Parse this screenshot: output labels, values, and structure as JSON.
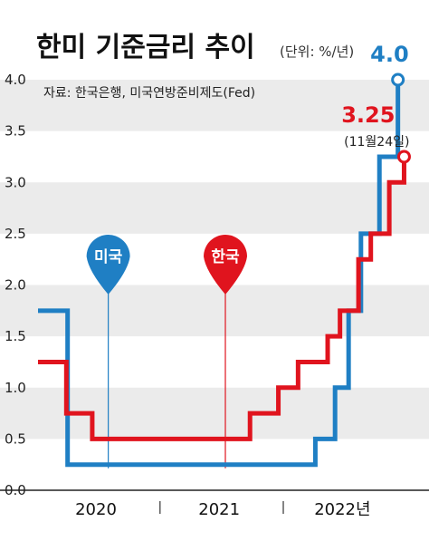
{
  "chart_data": {
    "type": "line",
    "title": "한미 기준금리 추이",
    "unit": "(단위: %/년)",
    "source": "자료: 한국은행, 미국연방준비제도(Fed)",
    "y_ticks": [
      "4.0",
      "3.5",
      "3.0",
      "2.5",
      "2.0",
      "1.5",
      "1.0",
      "0.5",
      "0.0"
    ],
    "ylim": [
      0,
      4
    ],
    "xlim": [
      2019.93,
      2022.97
    ],
    "x_ticks": [
      {
        "label": "2020",
        "x": 2020.4
      },
      {
        "label": "2021",
        "x": 2021.4
      },
      {
        "label": "2022년",
        "x": 2022.4
      }
    ],
    "x_separators": [
      2020.92,
      2021.92
    ],
    "grid": "alternating horizontal bands",
    "series": [
      {
        "name": "미국",
        "color": "#1f7fc4",
        "steps": [
          [
            2019.93,
            1.75
          ],
          [
            2020.17,
            0.25
          ],
          [
            2022.18,
            0.5
          ],
          [
            2022.34,
            1.0
          ],
          [
            2022.45,
            1.75
          ],
          [
            2022.55,
            2.5
          ],
          [
            2022.7,
            3.25
          ],
          [
            2022.85,
            4.0
          ]
        ],
        "end_value": "4.0"
      },
      {
        "name": "한국",
        "color": "#e0141e",
        "steps": [
          [
            2019.93,
            1.25
          ],
          [
            2020.16,
            0.75
          ],
          [
            2020.37,
            0.5
          ],
          [
            2021.65,
            0.75
          ],
          [
            2021.88,
            1.0
          ],
          [
            2022.04,
            1.25
          ],
          [
            2022.28,
            1.5
          ],
          [
            2022.38,
            1.75
          ],
          [
            2022.53,
            2.25
          ],
          [
            2022.63,
            2.5
          ],
          [
            2022.78,
            3.0
          ],
          [
            2022.9,
            3.25
          ]
        ],
        "end_value": "3.25",
        "end_date": "(11월24일)"
      }
    ],
    "pins": [
      {
        "label": "미국",
        "series": "미국",
        "x": 2020.5
      },
      {
        "label": "한국",
        "series": "한국",
        "x": 2021.45
      }
    ]
  }
}
